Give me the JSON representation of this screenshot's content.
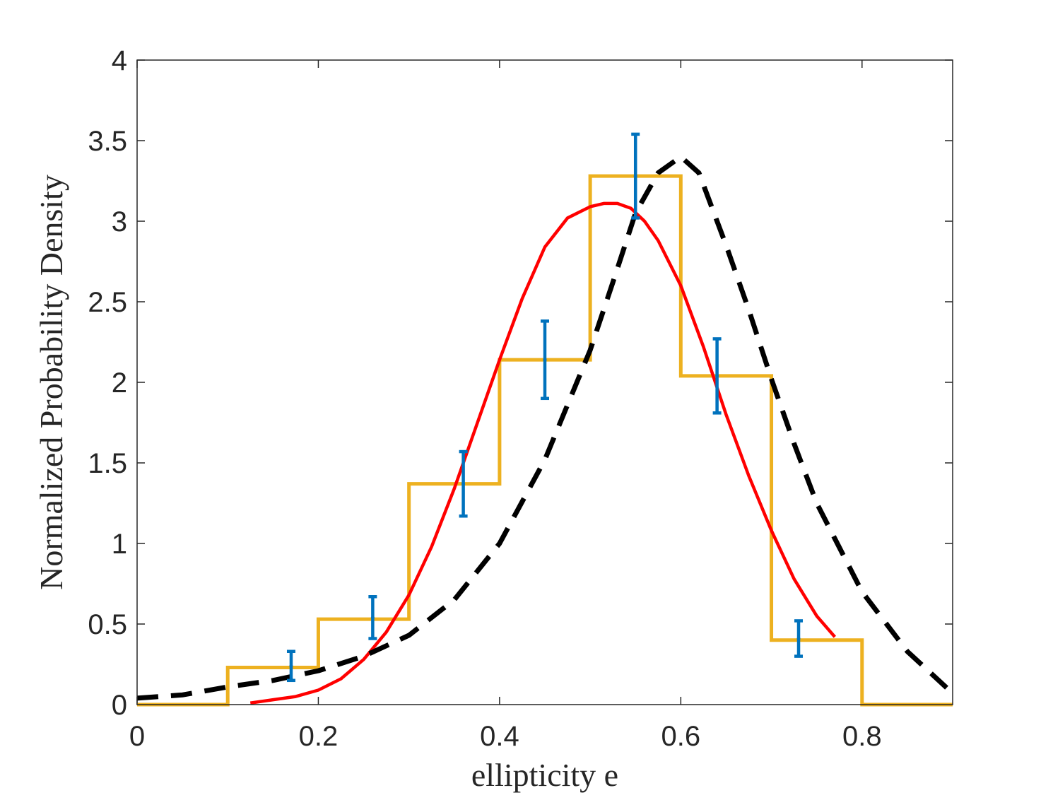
{
  "chart_data": {
    "type": "line",
    "title": "",
    "xlabel": "ellipticity e",
    "ylabel": "Normalized Probability Density",
    "xlim": [
      0,
      0.9
    ],
    "ylim": [
      0,
      4
    ],
    "xticks": [
      0,
      0.2,
      0.4,
      0.6,
      0.8
    ],
    "xtick_labels": [
      "0",
      "0.2",
      "0.4",
      "0.6",
      "0.8"
    ],
    "yticks": [
      0,
      0.5,
      1,
      1.5,
      2,
      2.5,
      3,
      3.5,
      4
    ],
    "ytick_labels": [
      "0",
      "0.5",
      "1",
      "1.5",
      "2",
      "2.5",
      "3",
      "3.5",
      "4"
    ],
    "grid": false,
    "legend": "none",
    "histogram": {
      "color": "#EDB120",
      "bin_edges": [
        0,
        0.1,
        0.2,
        0.3,
        0.4,
        0.5,
        0.6,
        0.7,
        0.8,
        0.9
      ],
      "values": [
        0,
        0.23,
        0.53,
        1.37,
        2.14,
        3.28,
        2.04,
        0.4,
        0
      ]
    },
    "error_bars": {
      "color": "#0072BD",
      "x": [
        0.17,
        0.26,
        0.36,
        0.45,
        0.55,
        0.64,
        0.73
      ],
      "y": [
        0.24,
        0.54,
        1.37,
        2.14,
        3.28,
        2.04,
        0.41
      ],
      "lower": [
        0.15,
        0.41,
        1.17,
        1.9,
        3.02,
        1.81,
        0.3
      ],
      "upper": [
        0.33,
        0.67,
        1.57,
        2.38,
        3.54,
        2.27,
        0.52
      ]
    },
    "series": [
      {
        "style": "solid",
        "color": "#FF0000",
        "x": [
          0.125,
          0.15,
          0.175,
          0.2,
          0.225,
          0.25,
          0.275,
          0.3,
          0.325,
          0.35,
          0.375,
          0.4,
          0.425,
          0.45,
          0.475,
          0.5,
          0.515,
          0.53,
          0.545,
          0.56,
          0.575,
          0.6,
          0.625,
          0.65,
          0.675,
          0.7,
          0.725,
          0.75,
          0.77
        ],
        "y": [
          0.01,
          0.03,
          0.05,
          0.09,
          0.16,
          0.28,
          0.45,
          0.68,
          0.98,
          1.34,
          1.74,
          2.14,
          2.52,
          2.84,
          3.02,
          3.09,
          3.11,
          3.11,
          3.08,
          3.0,
          2.88,
          2.6,
          2.22,
          1.8,
          1.42,
          1.08,
          0.78,
          0.55,
          0.42
        ]
      },
      {
        "style": "dashed",
        "color": "#000000",
        "x": [
          0,
          0.05,
          0.1,
          0.15,
          0.2,
          0.25,
          0.3,
          0.35,
          0.4,
          0.45,
          0.5,
          0.525,
          0.55,
          0.575,
          0.6,
          0.62,
          0.65,
          0.675,
          0.7,
          0.725,
          0.75,
          0.8,
          0.85,
          0.9
        ],
        "y": [
          0.04,
          0.06,
          0.11,
          0.15,
          0.21,
          0.3,
          0.43,
          0.65,
          1.0,
          1.52,
          2.2,
          2.62,
          3.05,
          3.3,
          3.4,
          3.3,
          2.85,
          2.45,
          2.02,
          1.62,
          1.25,
          0.7,
          0.33,
          0.07
        ]
      }
    ]
  }
}
